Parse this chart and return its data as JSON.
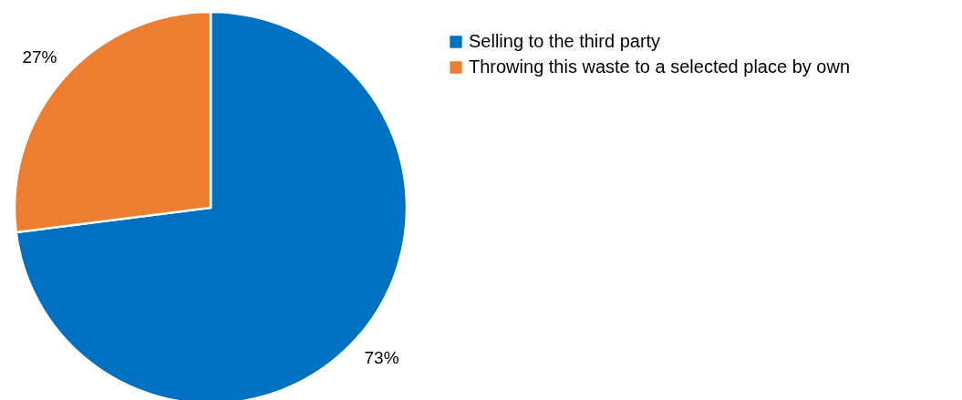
{
  "chart_data": {
    "type": "pie",
    "categories": [
      "Selling to the third party",
      "Throwing this waste to a selected place by own"
    ],
    "values": [
      73,
      27
    ],
    "colors": [
      "#0070c0",
      "#ed7d31"
    ],
    "value_labels": [
      "73%",
      "27%"
    ],
    "legend": "top right"
  }
}
